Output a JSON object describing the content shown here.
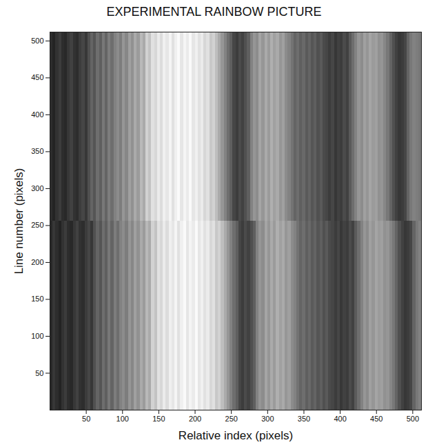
{
  "chart_data": {
    "type": "heatmap",
    "title": "EXPERIMENTAL RAINBOW PICTURE",
    "x_label": "Relative index (pixels)",
    "y_label": "Line number (pixels)",
    "xlim": [
      0,
      512
    ],
    "ylim": [
      0,
      512
    ],
    "xticks": [
      50,
      100,
      150,
      200,
      250,
      300,
      350,
      400,
      450,
      500
    ],
    "yticks": [
      50,
      100,
      150,
      200,
      250,
      300,
      350,
      400,
      450,
      500
    ],
    "x_bins": [
      0,
      4,
      8,
      12,
      16,
      20,
      24,
      28,
      32,
      36,
      40,
      44,
      48,
      52,
      56,
      60,
      64,
      68,
      72,
      76,
      80,
      84,
      88,
      92,
      96,
      100,
      104,
      108,
      112,
      116,
      120,
      124,
      128,
      132,
      136,
      140,
      144,
      148,
      152,
      156,
      160,
      164,
      168,
      172,
      176,
      180,
      184,
      188,
      192,
      196,
      200,
      204,
      208,
      212,
      216,
      220,
      224,
      228,
      232,
      236,
      240,
      244,
      248,
      252,
      256,
      260,
      264,
      268,
      272,
      276,
      280,
      284,
      288,
      292,
      296,
      300,
      304,
      308,
      312,
      316,
      320,
      324,
      328,
      332,
      336,
      340,
      344,
      348,
      352,
      356,
      360,
      364,
      368,
      372,
      376,
      380,
      384,
      388,
      392,
      396,
      400,
      404,
      408,
      412,
      416,
      420,
      424,
      428,
      432,
      436,
      440,
      444,
      448,
      452,
      456,
      460,
      464,
      468,
      472,
      476,
      480,
      484,
      488,
      492,
      496,
      500,
      504,
      508,
      512
    ],
    "y_bins": [
      0,
      256,
      512
    ],
    "zlim": [
      0,
      255
    ],
    "values": [
      [
        40,
        55,
        45,
        35,
        50,
        60,
        45,
        40,
        55,
        65,
        50,
        45,
        60,
        70,
        55,
        80,
        100,
        85,
        110,
        95,
        120,
        100,
        125,
        110,
        130,
        140,
        125,
        150,
        135,
        160,
        145,
        170,
        155,
        185,
        170,
        210,
        195,
        225,
        215,
        235,
        220,
        240,
        230,
        245,
        225,
        240,
        250,
        230,
        245,
        235,
        250,
        230,
        240,
        225,
        235,
        215,
        225,
        200,
        210,
        190,
        170,
        150,
        130,
        110,
        95,
        70,
        60,
        75,
        65,
        80,
        95,
        130,
        150,
        140,
        165,
        150,
        170,
        155,
        175,
        160,
        170,
        150,
        160,
        140,
        130,
        115,
        100,
        110,
        95,
        105,
        90,
        100,
        85,
        95,
        80,
        90,
        75,
        70,
        60,
        70,
        55,
        65,
        60,
        75,
        65,
        90,
        110,
        130,
        150,
        140,
        160,
        150,
        165,
        155,
        160,
        145,
        150,
        135,
        120,
        100,
        80,
        65,
        55,
        60,
        70,
        100,
        120,
        130
      ],
      [
        45,
        35,
        50,
        60,
        45,
        40,
        55,
        65,
        50,
        45,
        60,
        70,
        55,
        80,
        100,
        85,
        110,
        95,
        120,
        100,
        125,
        110,
        130,
        140,
        125,
        150,
        135,
        160,
        145,
        170,
        155,
        185,
        170,
        210,
        195,
        225,
        215,
        235,
        220,
        240,
        230,
        245,
        225,
        240,
        250,
        230,
        245,
        235,
        250,
        230,
        240,
        225,
        235,
        215,
        225,
        200,
        210,
        190,
        170,
        150,
        130,
        110,
        95,
        70,
        60,
        75,
        65,
        80,
        95,
        130,
        150,
        140,
        165,
        150,
        170,
        155,
        175,
        160,
        170,
        150,
        160,
        140,
        130,
        115,
        100,
        110,
        95,
        105,
        90,
        100,
        85,
        95,
        80,
        90,
        75,
        70,
        60,
        70,
        55,
        65,
        60,
        75,
        65,
        90,
        110,
        130,
        150,
        140,
        160,
        150,
        165,
        155,
        160,
        145,
        150,
        135,
        120,
        100,
        80,
        65,
        55,
        60,
        70,
        100,
        120,
        130,
        125,
        120
      ]
    ]
  }
}
